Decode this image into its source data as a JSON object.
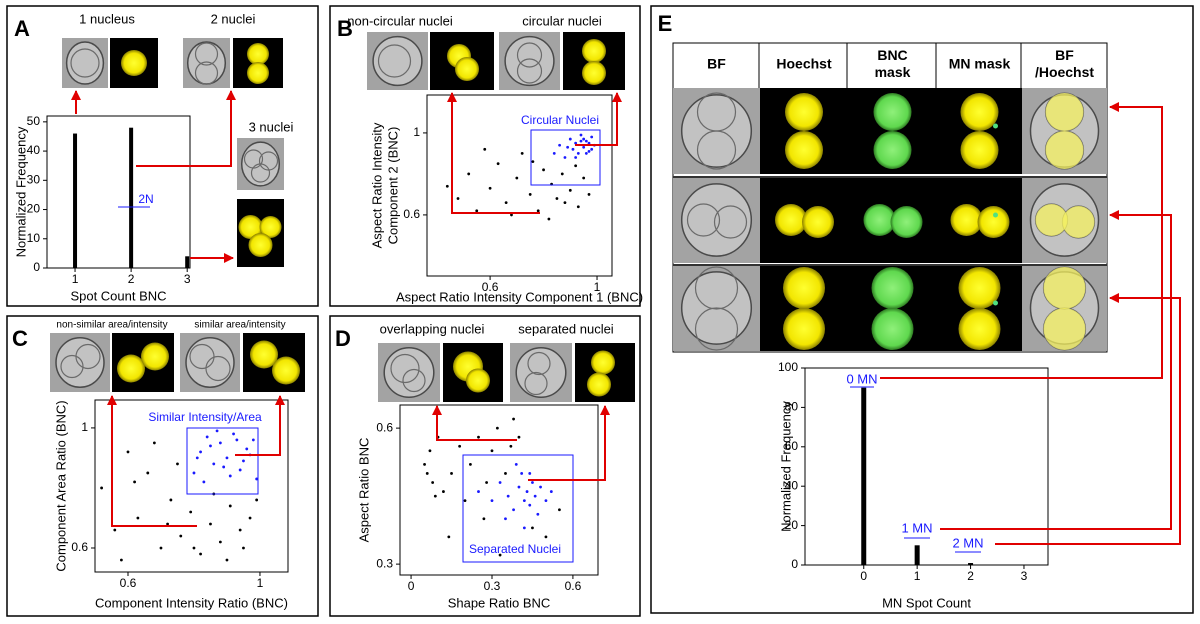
{
  "chart_data": [
    {
      "panel": "A",
      "type": "bar",
      "image_titles": [
        "1 nucleus",
        "2 nuclei",
        "3 nuclei"
      ],
      "x": [
        1,
        2,
        3
      ],
      "values": [
        46,
        48,
        4
      ],
      "color": "#000000",
      "xlim": [
        0.5,
        3.05
      ],
      "ylim": [
        0,
        52
      ],
      "xticks": [
        1,
        2,
        3
      ],
      "yticks": [
        0,
        10,
        20,
        30,
        40,
        50
      ],
      "xlabel": "Spot Count BNC",
      "ylabel": [
        "Normalized Frequency"
      ],
      "annotations": [
        "2N"
      ],
      "annotation_color": "#1a1aff"
    },
    {
      "panel": "B",
      "type": "scatter",
      "image_titles": [
        "non-circular nuclei",
        "circular nuclei"
      ],
      "xlim": [
        0.364,
        1.056
      ],
      "ylim": [
        0.302,
        1.185
      ],
      "xticks": [
        0.6,
        1
      ],
      "yticks": [
        0.6,
        1
      ],
      "xlabel": "Aspect Ratio Intensity Component 1 (BNC)",
      "ylabel": [
        "Aspect Ratio Intensity",
        "Component 2 (BNC)"
      ],
      "annotations": [
        "Circular Nuclei"
      ],
      "annotation_color": "#1a1aff",
      "series": [
        {
          "color": "#000000",
          "x": [
            0.48,
            0.52,
            0.55,
            0.6,
            0.63,
            0.66,
            0.7,
            0.72,
            0.75,
            0.78,
            0.8,
            0.83,
            0.85,
            0.87,
            0.9,
            0.93,
            0.95,
            0.97,
            0.58,
            0.68,
            0.76,
            0.82,
            0.88,
            0.44,
            0.92
          ],
          "y": [
            0.68,
            0.8,
            0.62,
            0.73,
            0.85,
            0.66,
            0.78,
            0.9,
            0.7,
            0.62,
            0.82,
            0.75,
            0.68,
            0.8,
            0.72,
            0.64,
            0.78,
            0.7,
            0.92,
            0.6,
            0.86,
            0.58,
            0.66,
            0.74,
            0.84
          ]
        },
        {
          "color": "#1a1aff",
          "x": [
            0.84,
            0.86,
            0.88,
            0.9,
            0.91,
            0.92,
            0.93,
            0.94,
            0.95,
            0.96,
            0.97,
            0.98,
            0.99,
            0.89,
            0.94,
            0.96,
            0.97,
            0.92,
            0.95,
            0.98
          ],
          "y": [
            0.9,
            0.94,
            0.88,
            0.97,
            0.92,
            0.95,
            0.9,
            0.99,
            0.93,
            0.96,
            0.91,
            0.98,
            0.94,
            0.93,
            0.96,
            0.9,
            0.95,
            0.88,
            0.97,
            0.92
          ]
        }
      ]
    },
    {
      "panel": "C",
      "type": "scatter",
      "image_titles": [
        "non-similar area/intensity",
        "similar area/intensity"
      ],
      "xlim": [
        0.5,
        1.085
      ],
      "ylim": [
        0.52,
        1.093
      ],
      "xticks": [
        0.6,
        1
      ],
      "yticks": [
        0.6,
        1
      ],
      "xlabel": "Component Intensity Ratio (BNC)",
      "ylabel": [
        "Component Area Ratio (BNC)"
      ],
      "annotations": [
        "Similar Intensity/Area"
      ],
      "annotation_color": "#1a1aff",
      "series": [
        {
          "color": "#000000",
          "x": [
            0.52,
            0.56,
            0.6,
            0.63,
            0.66,
            0.7,
            0.73,
            0.76,
            0.79,
            0.82,
            0.85,
            0.88,
            0.91,
            0.94,
            0.97,
            0.58,
            0.68,
            0.75,
            0.8,
            0.86,
            0.9,
            0.62,
            0.72,
            0.95,
            0.99
          ],
          "y": [
            0.8,
            0.66,
            0.92,
            0.7,
            0.85,
            0.6,
            0.76,
            0.64,
            0.72,
            0.58,
            0.68,
            0.62,
            0.74,
            0.66,
            0.7,
            0.56,
            0.95,
            0.88,
            0.6,
            0.78,
            0.56,
            0.82,
            0.68,
            0.6,
            0.76
          ]
        },
        {
          "color": "#1a1aff",
          "x": [
            0.8,
            0.82,
            0.84,
            0.86,
            0.88,
            0.9,
            0.92,
            0.94,
            0.96,
            0.98,
            0.83,
            0.87,
            0.91,
            0.95,
            0.97,
            0.85,
            0.89,
            0.93,
            0.81,
            0.99
          ],
          "y": [
            0.85,
            0.92,
            0.97,
            0.88,
            0.95,
            0.9,
            0.98,
            0.86,
            0.93,
            0.96,
            0.82,
            0.99,
            0.84,
            0.89,
            0.91,
            0.94,
            0.87,
            0.96,
            0.9,
            0.83
          ]
        }
      ]
    },
    {
      "panel": "D",
      "type": "scatter",
      "image_titles": [
        "overlapping nuclei",
        "separated nuclei"
      ],
      "xlim": [
        -0.041,
        0.693
      ],
      "ylim": [
        0.276,
        0.651
      ],
      "xticks": [
        0,
        0.3,
        0.6
      ],
      "yticks": [
        0.3,
        0.6
      ],
      "xlabel": "Shape Ratio BNC",
      "ylabel": [
        "Aspect Ratio BNC"
      ],
      "annotations": [
        "Separated Nuclei"
      ],
      "annotation_color": "#1a1aff",
      "series": [
        {
          "color": "#000000",
          "x": [
            0.05,
            0.06,
            0.07,
            0.08,
            0.1,
            0.12,
            0.15,
            0.18,
            0.2,
            0.22,
            0.25,
            0.28,
            0.3,
            0.32,
            0.35,
            0.37,
            0.38,
            0.4,
            0.14,
            0.27,
            0.45,
            0.5,
            0.55,
            0.09,
            0.33
          ],
          "y": [
            0.52,
            0.5,
            0.55,
            0.48,
            0.58,
            0.46,
            0.5,
            0.56,
            0.44,
            0.52,
            0.58,
            0.48,
            0.55,
            0.6,
            0.5,
            0.56,
            0.62,
            0.58,
            0.36,
            0.4,
            0.38,
            0.36,
            0.42,
            0.45,
            0.32
          ]
        },
        {
          "color": "#1a1aff",
          "x": [
            0.25,
            0.3,
            0.33,
            0.36,
            0.38,
            0.4,
            0.41,
            0.42,
            0.43,
            0.44,
            0.45,
            0.46,
            0.47,
            0.48,
            0.5,
            0.35,
            0.39,
            0.44,
            0.42,
            0.52
          ],
          "y": [
            0.46,
            0.44,
            0.48,
            0.45,
            0.42,
            0.47,
            0.5,
            0.44,
            0.46,
            0.43,
            0.48,
            0.45,
            0.41,
            0.47,
            0.44,
            0.4,
            0.52,
            0.5,
            0.38,
            0.46
          ]
        }
      ]
    },
    {
      "panel": "E",
      "type": "bar",
      "table_header": [
        [
          "BF"
        ],
        [
          "Hoechst"
        ],
        [
          "BNC",
          "mask"
        ],
        [
          "MN mask"
        ],
        [
          "BF",
          "/Hoechst"
        ]
      ],
      "x": [
        0,
        1,
        2,
        3
      ],
      "values": [
        90,
        10,
        1,
        0
      ],
      "color": "#000000",
      "xlim": [
        -1.1,
        3.45
      ],
      "ylim": [
        0,
        100
      ],
      "xticks": [
        0,
        1,
        2,
        3
      ],
      "yticks": [
        0,
        20,
        40,
        60,
        80,
        100
      ],
      "xlabel": "MN Spot Count",
      "ylabel": [
        "Normalized Frequency"
      ],
      "annotations": [
        "0 MN",
        "1 MN",
        "2 MN"
      ],
      "annotation_color": "#1a1aff"
    }
  ]
}
